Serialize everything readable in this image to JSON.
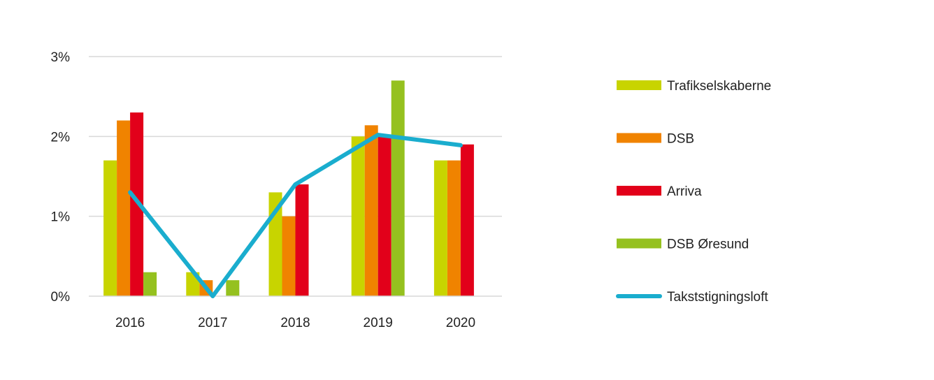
{
  "chart_data": {
    "type": "bar",
    "categories": [
      "2016",
      "2017",
      "2018",
      "2019",
      "2020"
    ],
    "y_ticks": [
      "0%",
      "1%",
      "2%",
      "3%"
    ],
    "ylim": [
      0,
      3
    ],
    "grid": true,
    "legend_position": "right",
    "series": [
      {
        "name": "Trafikselskaberne",
        "type": "bar",
        "color": "#c8d400",
        "values": [
          1.7,
          0.3,
          1.3,
          2.0,
          1.7
        ]
      },
      {
        "name": "DSB",
        "type": "bar",
        "color": "#f08300",
        "values": [
          2.2,
          0.2,
          1.0,
          2.14,
          1.7
        ]
      },
      {
        "name": "Arriva",
        "type": "bar",
        "color": "#e2001a",
        "values": [
          2.3,
          null,
          1.4,
          2.0,
          1.9
        ]
      },
      {
        "name": "DSB Øresund",
        "type": "bar",
        "color": "#95c11f",
        "values": [
          0.3,
          0.2,
          null,
          2.7,
          null
        ]
      },
      {
        "name": "Takststigningsloft",
        "type": "line",
        "color": "#1aadce",
        "values": [
          1.3,
          0.0,
          1.4,
          2.02,
          1.89
        ]
      }
    ]
  }
}
